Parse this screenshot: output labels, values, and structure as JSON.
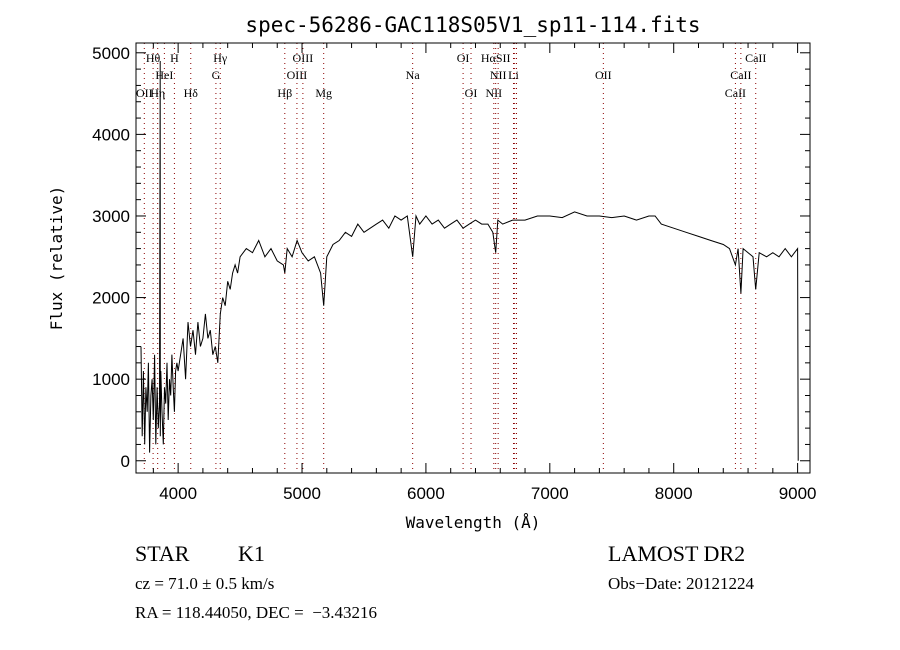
{
  "chart_data": {
    "type": "line",
    "title": "spec-56286-GAC118S05V1_sp11-114.fits",
    "xlabel": "Wavelength (Å)",
    "ylabel": "Flux (relative)",
    "xlim": [
      3660,
      9100
    ],
    "ylim": [
      -150,
      5120
    ],
    "xticks": [
      4000,
      5000,
      6000,
      7000,
      8000,
      9000
    ],
    "yticks": [
      0,
      1000,
      2000,
      3000,
      4000,
      5000
    ],
    "grid": false,
    "series": [
      {
        "name": "spectrum",
        "x": [
          3700,
          3710,
          3720,
          3730,
          3740,
          3750,
          3760,
          3770,
          3780,
          3790,
          3800,
          3810,
          3820,
          3830,
          3840,
          3850,
          3855,
          3856,
          3860,
          3870,
          3880,
          3890,
          3900,
          3910,
          3920,
          3930,
          3940,
          3950,
          3960,
          3970,
          3980,
          3990,
          4000,
          4020,
          4040,
          4060,
          4080,
          4100,
          4120,
          4140,
          4160,
          4180,
          4200,
          4220,
          4240,
          4260,
          4280,
          4300,
          4320,
          4340,
          4360,
          4380,
          4400,
          4420,
          4440,
          4460,
          4480,
          4500,
          4550,
          4600,
          4650,
          4700,
          4750,
          4800,
          4850,
          4861,
          4880,
          4920,
          4960,
          5000,
          5050,
          5100,
          5150,
          5175,
          5200,
          5250,
          5300,
          5350,
          5400,
          5450,
          5500,
          5550,
          5600,
          5650,
          5700,
          5750,
          5800,
          5850,
          5893,
          5920,
          5950,
          6000,
          6050,
          6100,
          6150,
          6200,
          6250,
          6300,
          6350,
          6400,
          6450,
          6500,
          6540,
          6563,
          6580,
          6620,
          6700,
          6800,
          6900,
          7000,
          7100,
          7200,
          7300,
          7400,
          7500,
          7600,
          7700,
          7800,
          7850,
          7900,
          8000,
          8100,
          8200,
          8300,
          8400,
          8450,
          8498,
          8520,
          8542,
          8560,
          8600,
          8640,
          8662,
          8690,
          8750,
          8800,
          8850,
          8900,
          8950,
          9000,
          9005
        ],
        "y": [
          1400,
          300,
          1100,
          200,
          900,
          600,
          1200,
          100,
          800,
          1000,
          500,
          1300,
          200,
          900,
          400,
          700,
          4900,
          300,
          1100,
          600,
          200,
          900,
          700,
          1200,
          500,
          1000,
          800,
          1300,
          900,
          600,
          1100,
          1200,
          1100,
          1300,
          1500,
          1000,
          1700,
          1400,
          1600,
          1300,
          1700,
          1400,
          1500,
          1800,
          1500,
          1600,
          1300,
          1400,
          1200,
          1800,
          2000,
          1900,
          2200,
          2100,
          2300,
          2400,
          2300,
          2500,
          2600,
          2550,
          2700,
          2500,
          2600,
          2450,
          2400,
          2300,
          2600,
          2500,
          2700,
          2550,
          2450,
          2500,
          2300,
          1900,
          2500,
          2650,
          2700,
          2800,
          2750,
          2900,
          2800,
          2850,
          2900,
          2950,
          2850,
          3000,
          2950,
          3000,
          2500,
          3000,
          2900,
          3000,
          2900,
          2950,
          2850,
          2900,
          2950,
          2850,
          2900,
          2950,
          2900,
          2900,
          2800,
          2550,
          2950,
          2900,
          2950,
          2950,
          3000,
          3000,
          2980,
          3050,
          3000,
          3000,
          2980,
          3000,
          2950,
          3000,
          3000,
          2900,
          2850,
          2800,
          2750,
          2700,
          2650,
          2600,
          2400,
          2600,
          2050,
          2600,
          2550,
          2500,
          2100,
          2550,
          2500,
          2550,
          2500,
          2600,
          2500,
          2600,
          0
        ]
      }
    ],
    "spectral_lines": [
      {
        "name": "Hθ",
        "wavelength": 3798,
        "row": 1
      },
      {
        "name": "H",
        "wavelength": 3970,
        "row": 1
      },
      {
        "name": "Hγ",
        "wavelength": 4340,
        "row": 1
      },
      {
        "name": "OIII",
        "wavelength": 5007,
        "row": 1
      },
      {
        "name": "OI",
        "wavelength": 6300,
        "row": 1
      },
      {
        "name": "HαSII",
        "wavelength": 6563,
        "row": 1
      },
      {
        "name": "CaII",
        "wavelength": 8662,
        "row": 1
      },
      {
        "name": "HeI",
        "wavelength": 3889,
        "row": 2
      },
      {
        "name": "G",
        "wavelength": 4305,
        "row": 2
      },
      {
        "name": "OIII",
        "wavelength": 4959,
        "row": 2
      },
      {
        "name": "Na",
        "wavelength": 5893,
        "row": 2
      },
      {
        "name": "NII",
        "wavelength": 6583,
        "row": 2
      },
      {
        "name": "Li",
        "wavelength": 6707,
        "row": 2
      },
      {
        "name": "OII",
        "wavelength": 7432,
        "row": 2
      },
      {
        "name": "CaII",
        "wavelength": 8542,
        "row": 2
      },
      {
        "name": "OII",
        "wavelength": 3727,
        "row": 3
      },
      {
        "name": "Hη",
        "wavelength": 3835,
        "row": 3
      },
      {
        "name": "Hδ",
        "wavelength": 4102,
        "row": 3
      },
      {
        "name": "Hβ",
        "wavelength": 4861,
        "row": 3
      },
      {
        "name": "Mg",
        "wavelength": 5175,
        "row": 3
      },
      {
        "name": "OI",
        "wavelength": 6364,
        "row": 3
      },
      {
        "name": "NII",
        "wavelength": 6548,
        "row": 3
      },
      {
        "name": "CaII",
        "wavelength": 8498,
        "row": 3
      }
    ],
    "extra_line_wavelengths": [
      6716,
      6731
    ],
    "line_color": "#8b0000"
  },
  "info": {
    "object_class": "STAR",
    "subclass": "K1",
    "survey": "LAMOST DR2",
    "redshift": "cz = 71.0 ± 0.5 km/s",
    "obs_date": "Obs−Date: 20121224",
    "coords": "RA = 118.44050, DEC =  −3.43216"
  }
}
